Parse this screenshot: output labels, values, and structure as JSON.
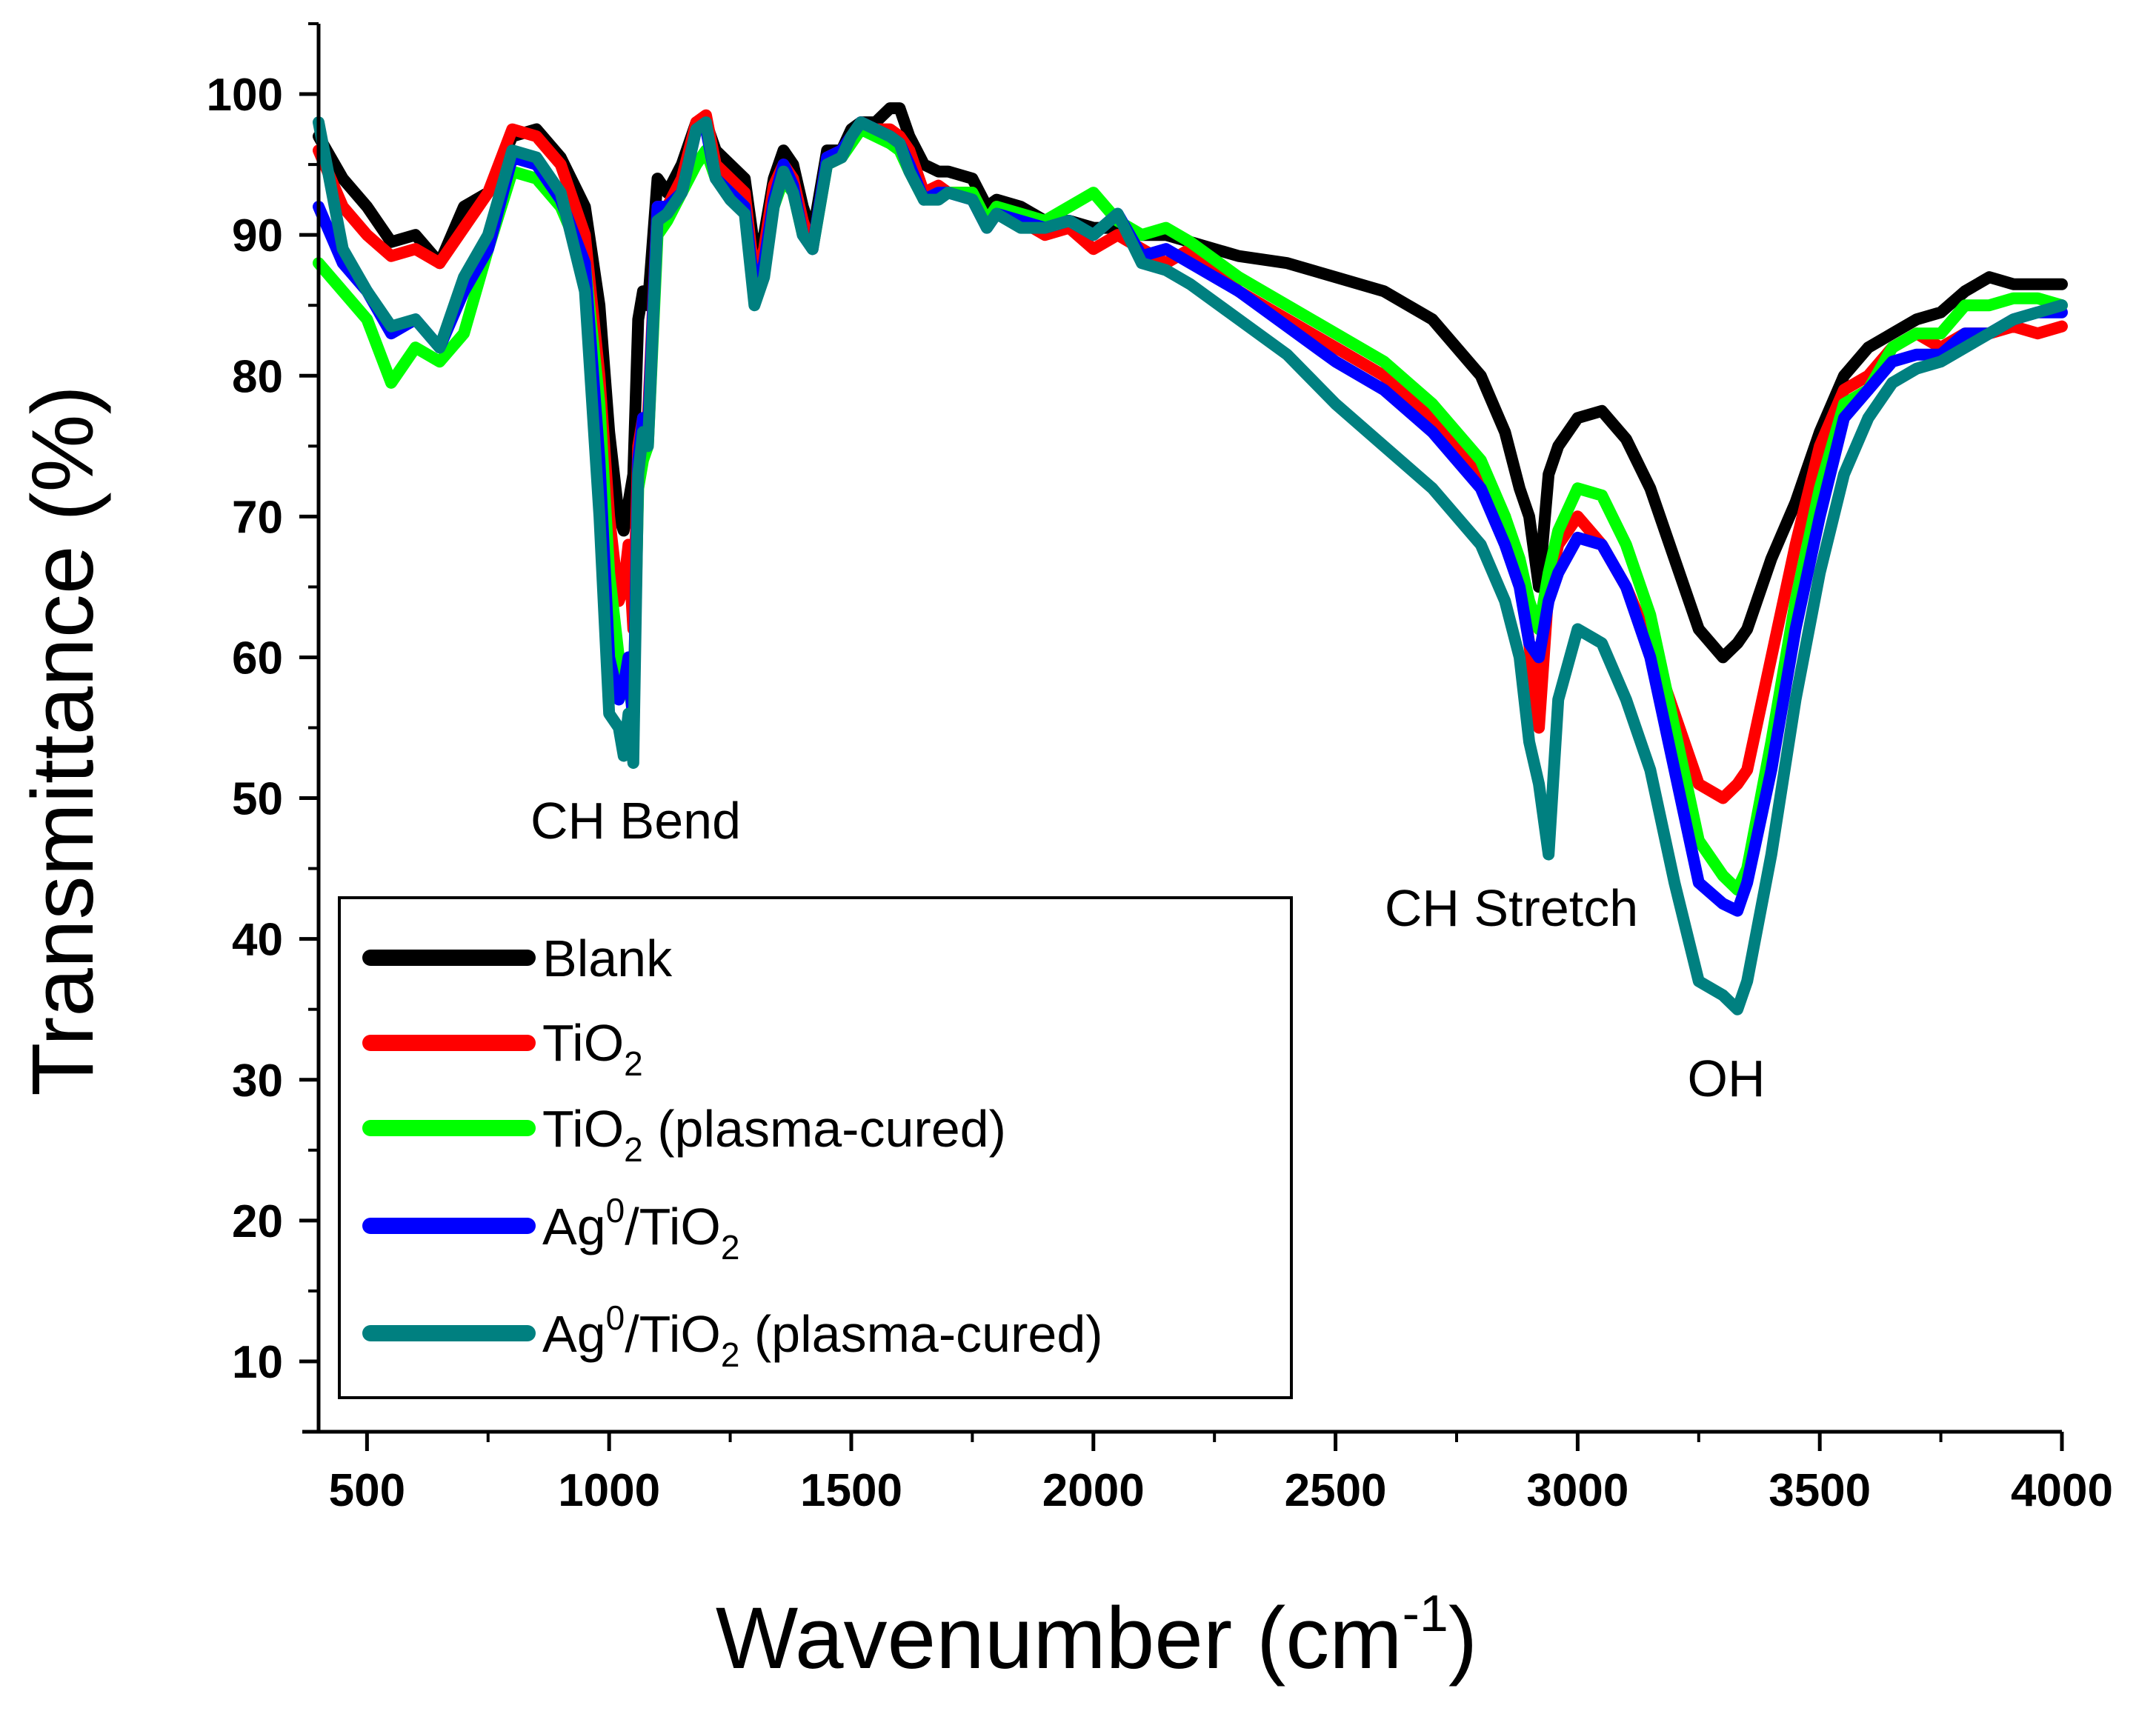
{
  "chart_data": {
    "type": "line",
    "title": "",
    "xlabel": "Wavenumber (cm",
    "xlabel_sup": "-1",
    "xlabel_end": ")",
    "ylabel": "Transmittance (%)",
    "xlim": [
      400,
      4000
    ],
    "ylim": [
      5,
      105
    ],
    "xticks": [
      500,
      1000,
      1500,
      2000,
      2500,
      3000,
      3500,
      4000
    ],
    "xtick_labels": [
      "500",
      "1000",
      "1500",
      "2000",
      "2500",
      "3000",
      "3500",
      "4000"
    ],
    "yticks": [
      10,
      20,
      30,
      40,
      50,
      60,
      70,
      80,
      90,
      100
    ],
    "ytick_labels": [
      "10",
      "20",
      "30",
      "40",
      "50",
      "60",
      "70",
      "80",
      "90",
      "100"
    ],
    "grid": false,
    "legend_position": "bottom-left",
    "annotations": [
      {
        "text": "CH Bend",
        "x": 1080,
        "y": 52.3
      },
      {
        "text": "CH Stretch",
        "x": 2770,
        "y": 47.1
      },
      {
        "text": "OH",
        "x": 3300,
        "y": 34.8
      }
    ],
    "series": [
      {
        "name": "Blank",
        "color": "#000000",
        "legend": {
          "base": "Blank"
        },
        "x": [
          400,
          450,
          500,
          550,
          600,
          650,
          700,
          750,
          800,
          850,
          900,
          950,
          980,
          1000,
          1020,
          1030,
          1040,
          1050,
          1060,
          1070,
          1080,
          1100,
          1120,
          1150,
          1180,
          1200,
          1220,
          1250,
          1280,
          1300,
          1320,
          1340,
          1360,
          1380,
          1400,
          1420,
          1450,
          1480,
          1500,
          1520,
          1550,
          1580,
          1600,
          1620,
          1650,
          1680,
          1700,
          1750,
          1780,
          1800,
          1850,
          1900,
          1950,
          2000,
          2050,
          2100,
          2150,
          2200,
          2300,
          2400,
          2500,
          2600,
          2700,
          2800,
          2850,
          2880,
          2900,
          2920,
          2940,
          2960,
          3000,
          3050,
          3100,
          3150,
          3200,
          3250,
          3300,
          3330,
          3350,
          3400,
          3450,
          3500,
          3550,
          3600,
          3650,
          3700,
          3750,
          3800,
          3850,
          3900,
          3950,
          4000
        ],
        "y": [
          97,
          94,
          92,
          89.5,
          90,
          88,
          92,
          93,
          97,
          97.5,
          95.5,
          92,
          85,
          76,
          70,
          69,
          71,
          73,
          84,
          86,
          85,
          94,
          93,
          95,
          98,
          98,
          96,
          95,
          94,
          89,
          90,
          94,
          96,
          95,
          92,
          90,
          96,
          96,
          97.5,
          98,
          98,
          99,
          99,
          97,
          95,
          94.5,
          94.5,
          94,
          92,
          92.5,
          92,
          91,
          91,
          90.5,
          90.5,
          90,
          90,
          89.5,
          88.5,
          88,
          87,
          86,
          84,
          80,
          76,
          72,
          70,
          65,
          73,
          75,
          77,
          77.5,
          75.5,
          72,
          67,
          62,
          60,
          61,
          62,
          67,
          71,
          76,
          80,
          82,
          83,
          84,
          84.5,
          86,
          87,
          86.5,
          86.5,
          86.5
        ]
      },
      {
        "name": "TiO2",
        "color": "#ff0000",
        "legend": {
          "base": "TiO",
          "sub": "2"
        },
        "x": [
          400,
          450,
          500,
          550,
          600,
          650,
          700,
          750,
          800,
          850,
          900,
          950,
          980,
          1000,
          1020,
          1030,
          1040,
          1050,
          1060,
          1070,
          1080,
          1100,
          1120,
          1150,
          1180,
          1200,
          1220,
          1250,
          1280,
          1300,
          1320,
          1340,
          1360,
          1380,
          1400,
          1420,
          1450,
          1480,
          1500,
          1520,
          1550,
          1580,
          1600,
          1620,
          1650,
          1680,
          1700,
          1750,
          1780,
          1800,
          1850,
          1900,
          1950,
          2000,
          2050,
          2100,
          2150,
          2200,
          2300,
          2400,
          2500,
          2600,
          2700,
          2800,
          2850,
          2880,
          2900,
          2920,
          2940,
          2960,
          3000,
          3050,
          3100,
          3150,
          3200,
          3250,
          3300,
          3330,
          3350,
          3400,
          3450,
          3500,
          3550,
          3600,
          3650,
          3700,
          3750,
          3800,
          3850,
          3900,
          3950,
          4000
        ],
        "y": [
          96,
          92,
          90,
          88.5,
          89,
          88,
          90.5,
          93,
          97.5,
          97,
          95,
          90,
          80,
          70,
          64,
          65,
          68,
          62,
          75,
          77,
          77,
          92,
          92,
          94,
          98,
          98.5,
          95,
          94,
          93,
          87,
          89,
          93.5,
          95,
          94,
          91,
          89,
          95.5,
          96,
          97,
          98,
          97.5,
          97.5,
          97,
          96,
          93,
          93.5,
          93,
          93,
          91,
          92,
          91,
          90,
          90.5,
          89,
          90,
          89,
          88,
          89,
          86,
          84,
          82,
          80,
          77,
          73,
          70,
          66,
          61,
          55,
          65,
          68,
          70,
          68,
          65,
          61,
          56,
          51,
          50,
          51,
          52,
          60,
          68,
          75,
          79,
          80,
          82,
          83,
          82,
          83,
          83,
          83.5,
          83,
          83.5
        ]
      },
      {
        "name": "TiO2 (plasma-cured)",
        "color": "#00ff00",
        "legend": {
          "base": "TiO",
          "sub": "2",
          "tail": " (plasma-cured)"
        },
        "x": [
          400,
          450,
          500,
          550,
          600,
          650,
          700,
          750,
          800,
          850,
          900,
          950,
          980,
          1000,
          1020,
          1030,
          1040,
          1050,
          1060,
          1070,
          1080,
          1100,
          1120,
          1150,
          1180,
          1200,
          1220,
          1250,
          1280,
          1300,
          1320,
          1340,
          1360,
          1380,
          1400,
          1420,
          1450,
          1480,
          1500,
          1520,
          1550,
          1580,
          1600,
          1620,
          1650,
          1680,
          1700,
          1750,
          1780,
          1800,
          1850,
          1900,
          1950,
          2000,
          2050,
          2100,
          2150,
          2200,
          2300,
          2400,
          2500,
          2600,
          2700,
          2800,
          2850,
          2880,
          2900,
          2920,
          2940,
          2960,
          3000,
          3050,
          3100,
          3150,
          3200,
          3250,
          3300,
          3330,
          3350,
          3400,
          3450,
          3500,
          3550,
          3600,
          3650,
          3700,
          3750,
          3800,
          3850,
          3900,
          3950,
          4000
        ],
        "y": [
          88,
          86,
          84,
          79.5,
          82,
          81,
          83,
          89,
          94.5,
          94,
          92,
          88,
          78,
          66,
          60,
          59,
          58,
          56,
          72,
          74,
          75,
          90,
          91,
          93,
          95,
          96,
          94,
          93,
          92,
          86,
          88,
          92,
          94,
          93,
          90,
          89,
          95,
          95.5,
          96.5,
          97.5,
          97,
          96.5,
          96,
          94.5,
          92.5,
          93,
          93,
          93,
          91,
          92,
          91.5,
          91,
          92,
          93,
          91,
          90,
          90.5,
          89.5,
          87,
          85,
          83,
          81,
          78,
          74,
          70,
          67,
          64,
          62,
          66,
          69,
          72,
          71.5,
          68,
          63,
          55,
          47,
          44.5,
          43.5,
          45,
          54,
          64,
          72,
          78,
          79,
          82,
          83,
          83,
          85,
          85,
          85.5,
          85.5,
          85
        ]
      },
      {
        "name": "Ag0/TiO2",
        "color": "#0000ff",
        "legend": {
          "base": "Ag",
          "sup": "0",
          "mid": "/TiO",
          "sub": "2"
        },
        "x": [
          400,
          450,
          500,
          550,
          600,
          650,
          700,
          750,
          800,
          850,
          900,
          950,
          980,
          1000,
          1020,
          1030,
          1040,
          1050,
          1060,
          1070,
          1080,
          1100,
          1120,
          1150,
          1180,
          1200,
          1220,
          1250,
          1280,
          1300,
          1320,
          1340,
          1360,
          1380,
          1400,
          1420,
          1450,
          1480,
          1500,
          1520,
          1550,
          1580,
          1600,
          1620,
          1650,
          1680,
          1700,
          1750,
          1780,
          1800,
          1850,
          1900,
          1950,
          2000,
          2050,
          2100,
          2150,
          2200,
          2300,
          2400,
          2500,
          2600,
          2700,
          2800,
          2850,
          2880,
          2900,
          2920,
          2940,
          2960,
          3000,
          3050,
          3100,
          3150,
          3200,
          3250,
          3300,
          3330,
          3350,
          3400,
          3450,
          3500,
          3550,
          3600,
          3650,
          3700,
          3750,
          3800,
          3850,
          3900,
          3950,
          4000
        ],
        "y": [
          92,
          88,
          86,
          83,
          84,
          82,
          86,
          89,
          95.5,
          95,
          92.5,
          88,
          74,
          60,
          57,
          58,
          60,
          55,
          74,
          77,
          76,
          92,
          92,
          93,
          97.5,
          97.5,
          94,
          93,
          92,
          86,
          88,
          92.5,
          95,
          93.5,
          90,
          89,
          95.5,
          96,
          97,
          98,
          97.5,
          97,
          96.5,
          95,
          92.5,
          93,
          93,
          92.5,
          90.5,
          91.5,
          91,
          90.5,
          91,
          90,
          91.5,
          88.5,
          89,
          88,
          86,
          83.5,
          81,
          79,
          76,
          72,
          68,
          65,
          61,
          60,
          64,
          66,
          68.5,
          68,
          65,
          60,
          52,
          44,
          42.5,
          42,
          44,
          52,
          62,
          70,
          77,
          79,
          81,
          81.5,
          81.5,
          83,
          83,
          84,
          84.5,
          84.5
        ]
      },
      {
        "name": "Ag0/TiO2 (plasma-cured)",
        "color": "#008080",
        "legend": {
          "base": "Ag",
          "sup": "0",
          "mid": "/TiO",
          "sub": "2",
          "tail": " (plasma-cured)"
        },
        "x": [
          400,
          450,
          500,
          550,
          600,
          650,
          700,
          750,
          800,
          850,
          900,
          950,
          980,
          1000,
          1020,
          1030,
          1040,
          1050,
          1060,
          1070,
          1080,
          1100,
          1120,
          1150,
          1180,
          1200,
          1220,
          1250,
          1280,
          1300,
          1320,
          1340,
          1360,
          1380,
          1400,
          1420,
          1450,
          1480,
          1500,
          1520,
          1550,
          1580,
          1600,
          1620,
          1650,
          1680,
          1700,
          1750,
          1780,
          1800,
          1850,
          1900,
          1950,
          2000,
          2050,
          2100,
          2150,
          2200,
          2300,
          2400,
          2500,
          2600,
          2700,
          2800,
          2850,
          2880,
          2900,
          2920,
          2940,
          2960,
          3000,
          3050,
          3100,
          3150,
          3200,
          3250,
          3300,
          3330,
          3350,
          3400,
          3450,
          3500,
          3550,
          3600,
          3650,
          3700,
          3750,
          3800,
          3850,
          3900,
          3950,
          4000
        ],
        "y": [
          98,
          89,
          86,
          83.5,
          84,
          82,
          87,
          90,
          96,
          95.5,
          93,
          86,
          70,
          56,
          55,
          53,
          56,
          52.5,
          73,
          76,
          75,
          91,
          91.5,
          93,
          97.5,
          98,
          94,
          92.5,
          91.5,
          85,
          87,
          92,
          94.5,
          93,
          90,
          89,
          95,
          95.5,
          97,
          98,
          97.5,
          97,
          96.5,
          94.5,
          92.5,
          92.5,
          93,
          92.5,
          90.5,
          91.5,
          90.5,
          90.5,
          91,
          90,
          91.5,
          88,
          87.5,
          86.5,
          84,
          81.5,
          78,
          75,
          72,
          68,
          64,
          60,
          54,
          51,
          46,
          57,
          62,
          61,
          57,
          52,
          44,
          37,
          36,
          35,
          37,
          46,
          57,
          66,
          73,
          77,
          79.5,
          80.5,
          81,
          82,
          83,
          84,
          84.5,
          85
        ]
      }
    ]
  }
}
